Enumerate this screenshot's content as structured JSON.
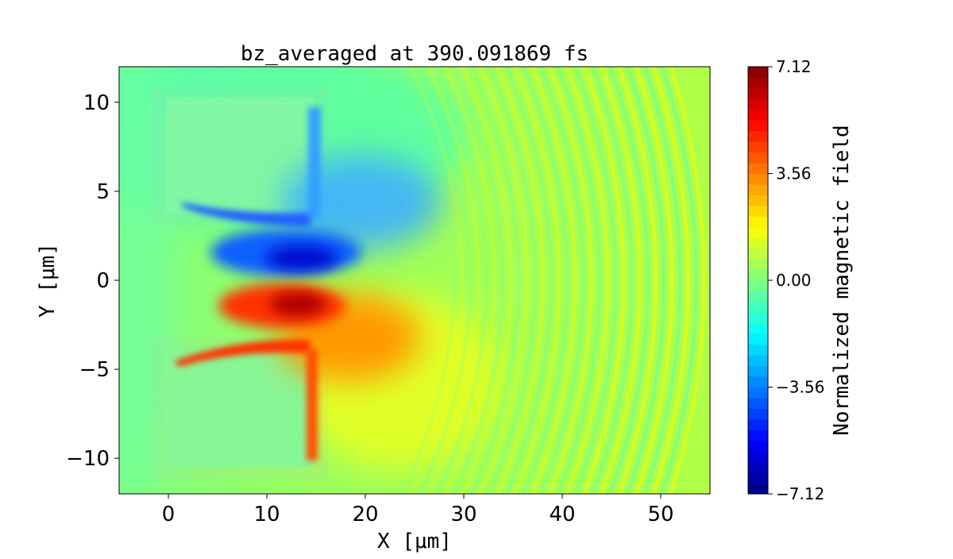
{
  "chart_data": {
    "type": "heatmap",
    "title": "bz_averaged at 390.091869 fs",
    "xlabel": "X [μm]",
    "ylabel": "Y [μm]",
    "xlim": [
      -5,
      55
    ],
    "ylim": [
      -12,
      12
    ],
    "xticks": [
      0,
      10,
      20,
      30,
      40,
      50
    ],
    "xtick_labels": [
      "0",
      "10",
      "20",
      "30",
      "40",
      "50"
    ],
    "yticks": [
      10,
      5,
      0,
      -5,
      -10
    ],
    "ytick_labels": [
      "10",
      "5",
      "0",
      "−5",
      "−10"
    ],
    "colormap": "jet",
    "clim": [
      -7.12,
      7.12
    ],
    "colorbar_label": "Normalized magnetic field",
    "colorbar_ticks": [
      7.12,
      3.56,
      0.0,
      -3.56,
      -7.12
    ],
    "colorbar_tick_labels": [
      "7.12",
      "3.56",
      "0.00",
      "−3.56",
      "−7.12"
    ],
    "colorbar_levels": 40,
    "features": [
      {
        "name": "upper-target",
        "x": [
          0,
          15
        ],
        "y": [
          4,
          10
        ],
        "value": -0.5
      },
      {
        "name": "lower-target",
        "x": [
          0,
          15
        ],
        "y": [
          -10,
          -4
        ],
        "value": -0.5
      },
      {
        "name": "negative-lobe",
        "x": 13,
        "y": 1.2,
        "value": -6.5
      },
      {
        "name": "positive-lobe",
        "x": 13,
        "y": -1.5,
        "value": 6.5
      },
      {
        "name": "wake-waves",
        "x": [
          35,
          55
        ],
        "value": 1.0
      }
    ]
  }
}
